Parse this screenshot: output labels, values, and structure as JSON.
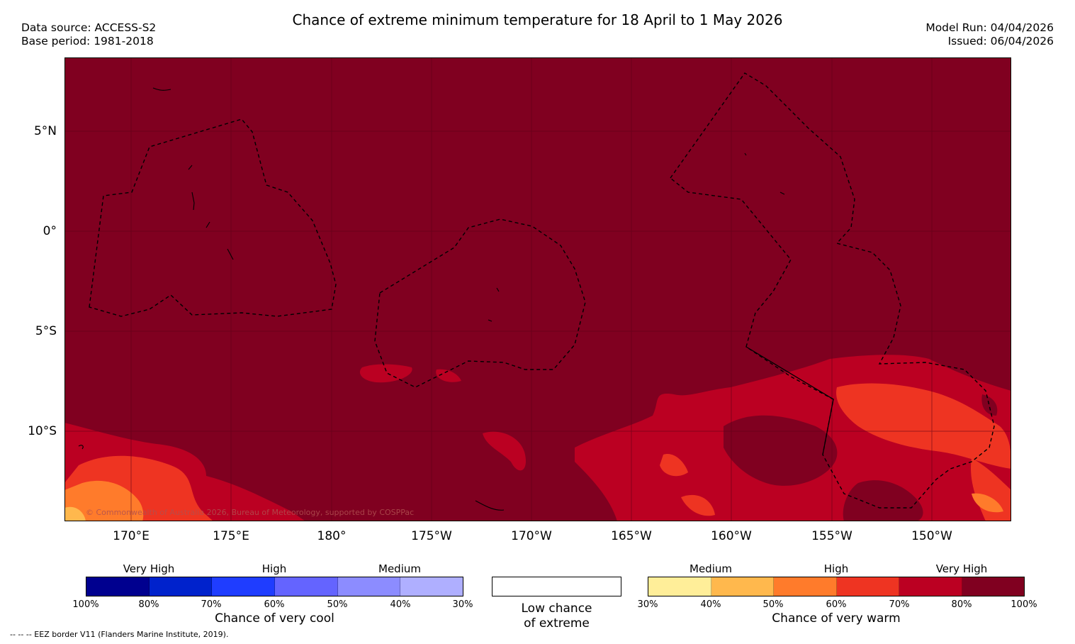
{
  "title": "Chance of extreme minimum temperature for 18 April to 1 May 2026",
  "data_source": "Data source: ACCESS-S2",
  "base_period": "Base period: 1981-2018",
  "model_run": "Model Run: 04/04/2026",
  "issued": "Issued: 06/04/2026",
  "lat_labels": [
    "5°N",
    "0°",
    "5°S",
    "10°S"
  ],
  "lon_labels": [
    "170°E",
    "175°E",
    "180°",
    "175°W",
    "170°W",
    "165°W",
    "160°W",
    "155°W",
    "150°W"
  ],
  "copyright": "© Commonwealth of Australia 2026, Bureau of Meteorology, supported by COSPPac",
  "footnote": "--  --  -- EEZ border V11 (Flanders Marine Institute, 2019).",
  "legend": {
    "cool": {
      "title": "Chance of very cool",
      "categories": [
        "Very High",
        "High",
        "Medium"
      ],
      "ticks": [
        "100%",
        "80%",
        "70%",
        "60%",
        "50%",
        "40%",
        "30%"
      ],
      "colors": [
        "#00008f",
        "#0022cc",
        "#1f3dff",
        "#6464ff",
        "#8c8cff",
        "#afafff"
      ]
    },
    "neutral": {
      "line1": "Low chance",
      "line2": "of extreme",
      "color": "#ffffff"
    },
    "warm": {
      "title": "Chance of very warm",
      "categories": [
        "Medium",
        "High",
        "Very High"
      ],
      "ticks": [
        "30%",
        "40%",
        "50%",
        "60%",
        "70%",
        "80%",
        "100%"
      ],
      "colors": [
        "#ffee99",
        "#ffb84d",
        "#ff7b2b",
        "#ee3422",
        "#bb0022",
        "#800020"
      ]
    }
  }
}
